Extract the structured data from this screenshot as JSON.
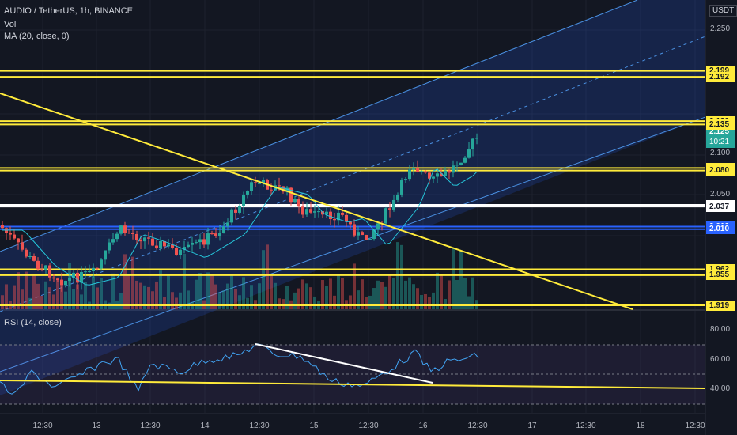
{
  "legend": {
    "symbol": "AUDIO / TetherUS, 1h, BINANCE",
    "volume": "Vol",
    "ma": "MA (20, close, 0)",
    "rsi": "RSI (14, close)"
  },
  "currency": "USDT",
  "price_axis_labels": [
    "2.250",
    "2.100",
    "2.050"
  ],
  "rsi_axis_labels": [
    "80.00",
    "60.00",
    "40.00"
  ],
  "time_labels": [
    "12:30",
    "13",
    "12:30",
    "14",
    "12:30",
    "15",
    "12:30",
    "16",
    "12:30",
    "17",
    "12:30",
    "18",
    "12:30"
  ],
  "current_price": {
    "value": "2.125",
    "countdown": "10:21",
    "color": "#26a69a"
  },
  "price_lines": [
    {
      "value": 2.199,
      "label": "2.199",
      "color": "#ffeb3b"
    },
    {
      "value": 2.192,
      "label": "2.192",
      "color": "#ffeb3b"
    },
    {
      "value": 2.139,
      "label": "2.139",
      "color": "#ffeb3b"
    },
    {
      "value": 2.135,
      "label": "2.135",
      "color": "#ffeb3b"
    },
    {
      "value": 2.083,
      "label": "2.083",
      "color": "#ffeb3b"
    },
    {
      "value": 2.08,
      "label": "2.080",
      "color": "#ffeb3b"
    },
    {
      "value": 2.039,
      "label": "2.039",
      "color": "#ffffff"
    },
    {
      "value": 2.037,
      "label": "2.037",
      "color": "#ffffff"
    },
    {
      "value": 2.013,
      "label": "2.013",
      "color": "#2962ff"
    },
    {
      "value": 2.01,
      "label": "2.010",
      "color": "#2962ff"
    },
    {
      "value": 1.962,
      "label": "1.962",
      "color": "#ffeb3b"
    },
    {
      "value": 1.955,
      "label": "1.955",
      "color": "#ffeb3b"
    },
    {
      "value": 1.919,
      "label": "1.919",
      "color": "#ffeb3b"
    }
  ],
  "colors": {
    "up": "#26a69a",
    "down": "#ef5350",
    "channel": "#2196f3",
    "ma": "#26c6da",
    "rsi": "#42a5f5",
    "trend": "#ffeb3b"
  }
}
